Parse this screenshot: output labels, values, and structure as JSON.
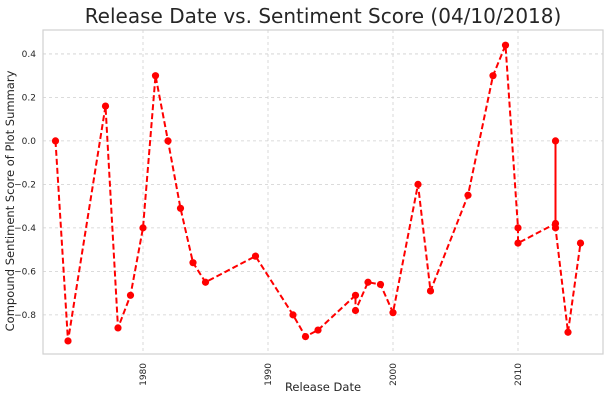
{
  "chart_data": {
    "type": "line",
    "title": "Release Date vs. Sentiment Score (04/10/2018)",
    "xlabel": "Release Date",
    "ylabel": "Compound Sentiment Score of Plot Summary",
    "x_tick_values": [
      1980,
      1990,
      2000,
      2010
    ],
    "x_tick_labels": [
      "1980",
      "1990",
      "2000",
      "2010"
    ],
    "y_tick_values": [
      -0.8,
      -0.6,
      -0.4,
      -0.2,
      0.0,
      0.2,
      0.4
    ],
    "y_tick_labels": [
      "−0.8",
      "−0.6",
      "−0.4",
      "−0.2",
      "0.0",
      "0.2",
      "0.4"
    ],
    "xlim": [
      1972.0,
      2016.8
    ],
    "ylim": [
      -0.98,
      0.51
    ],
    "grid": true,
    "color": "#ff0000",
    "line_style": "dashed",
    "marker": "circle",
    "series": [
      {
        "x": [
          1973,
          1974,
          1977,
          1978,
          1979,
          1980,
          1981,
          1982,
          1983,
          1984,
          1985,
          1989,
          1992,
          1993,
          1994,
          1997,
          1997,
          1998,
          1999,
          2000,
          2002,
          2003,
          2006,
          2008,
          2009,
          2010,
          2010,
          2013,
          2013,
          2013,
          2014,
          2015
        ],
        "y": [
          0.0,
          -0.92,
          0.16,
          -0.86,
          -0.71,
          -0.4,
          0.3,
          0.0,
          -0.31,
          -0.56,
          -0.65,
          -0.53,
          -0.8,
          -0.9,
          -0.87,
          -0.71,
          -0.78,
          -0.65,
          -0.66,
          -0.79,
          -0.2,
          -0.69,
          -0.25,
          0.3,
          0.44,
          -0.4,
          -0.47,
          -0.38,
          0.0,
          -0.4,
          -0.88,
          -0.47
        ]
      }
    ]
  }
}
